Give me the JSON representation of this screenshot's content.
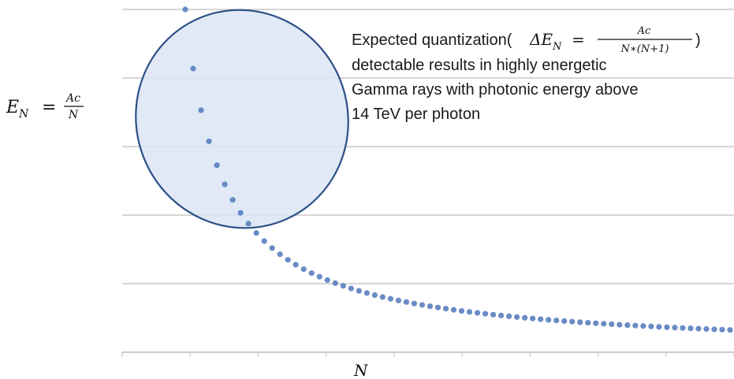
{
  "chart_data": {
    "type": "scatter",
    "title": "",
    "xlabel": "N",
    "ylabel": "",
    "y_axis_formula": {
      "lhs_symbol": "E",
      "lhs_subscript": "N",
      "equals": "=",
      "numerator": "Ac",
      "denominator": "N"
    },
    "xlim": [
      1,
      70
    ],
    "ylim": [
      0,
      5
    ],
    "grid": true,
    "x_ticks_count": 9,
    "tick_labels_shown": false,
    "marker_color": "#5a7fc0",
    "function": "y = 24 / (x + 3.8)",
    "points_count": 70,
    "annotation": {
      "line1_prefix": "Expected quantization(",
      "delta_symbol": "ΔE",
      "delta_subscript": "N",
      "equals": "=",
      "numerator": "Ac",
      "denominator": "N∗(N+1)",
      "line1_suffix": ")",
      "line2": "detectable results in highly energetic",
      "line3": "Gamma rays with photonic energy above",
      "line4": "14 TeV per photon"
    },
    "highlight_ellipse": {
      "description": "region of highest energies",
      "fill": "#dbe5f3",
      "stroke": "#2c4f86"
    }
  }
}
